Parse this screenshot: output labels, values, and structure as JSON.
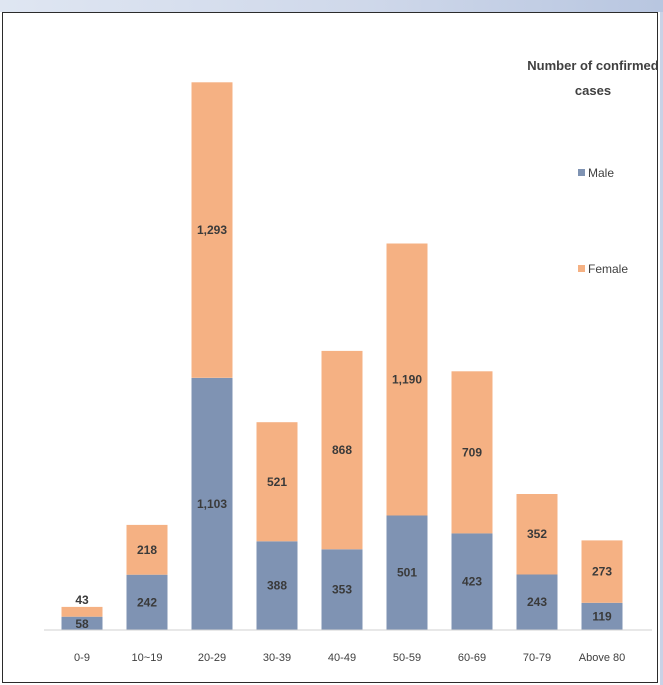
{
  "chart_data": {
    "type": "bar",
    "stacked": true,
    "title": "",
    "xlabel": "",
    "ylabel": "",
    "grid": false,
    "categories": [
      "0-9",
      "10~19",
      "20-29",
      "30-39",
      "40-49",
      "50-59",
      "60-69",
      "70-79",
      "Above 80"
    ],
    "series": [
      {
        "name": "Male",
        "color": "#7f93b3",
        "values": [
          58,
          242,
          1103,
          388,
          353,
          501,
          423,
          243,
          119
        ],
        "labels": [
          "58",
          "242",
          "1,103",
          "388",
          "353",
          "501",
          "423",
          "243",
          "119"
        ]
      },
      {
        "name": "Female",
        "color": "#f5b183",
        "values": [
          43,
          218,
          1293,
          521,
          868,
          1190,
          709,
          352,
          273
        ],
        "labels": [
          "43",
          "218",
          "1,293",
          "521",
          "868",
          "1,190",
          "709",
          "352",
          "273"
        ]
      }
    ],
    "ylim": [
      0,
      2450
    ],
    "legend": {
      "title": "Number of confirmed cases",
      "position": "right"
    }
  }
}
